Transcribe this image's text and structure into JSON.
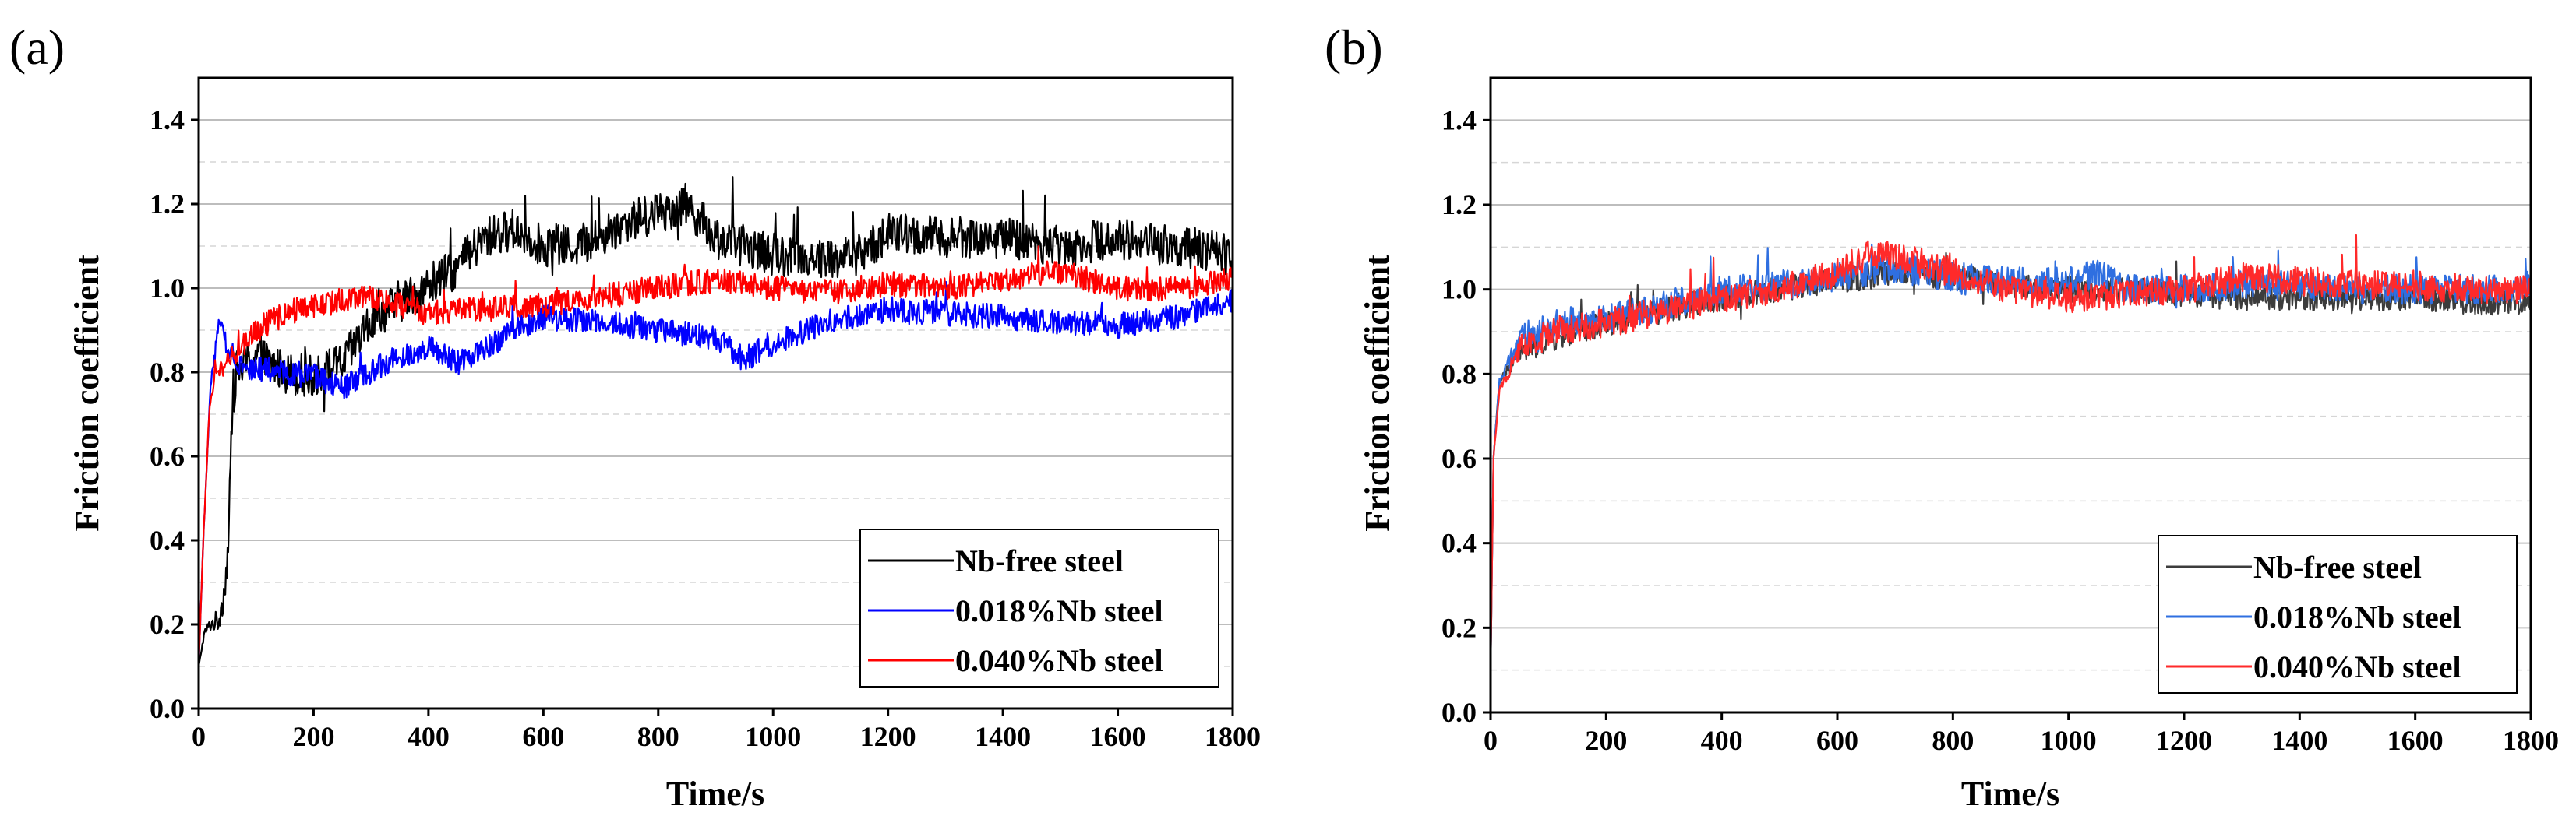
{
  "chart_data": [
    {
      "type": "line",
      "panel_label": "(a)",
      "xlabel": "Time/s",
      "ylabel": "Friction coefficient",
      "xlim": [
        0,
        1800
      ],
      "ylim": [
        0,
        1.5
      ],
      "x_ticks": [
        "0",
        "200",
        "400",
        "600",
        "800",
        "1000",
        "1200",
        "1400",
        "1600",
        "1800"
      ],
      "y_ticks": [
        "0.0",
        "0.2",
        "0.4",
        "0.6",
        "0.8",
        "1.0",
        "1.2",
        "1.4"
      ],
      "grid": true,
      "legend_position": "bottom-right",
      "series": [
        {
          "name": "Nb-free steel",
          "color": "#000000",
          "noise": 0.05,
          "points": [
            [
              0,
              0.1
            ],
            [
              10,
              0.18
            ],
            [
              20,
              0.2
            ],
            [
              35,
              0.21
            ],
            [
              45,
              0.28
            ],
            [
              52,
              0.4
            ],
            [
              58,
              0.7
            ],
            [
              65,
              0.8
            ],
            [
              100,
              0.84
            ],
            [
              150,
              0.8
            ],
            [
              200,
              0.79
            ],
            [
              250,
              0.82
            ],
            [
              300,
              0.92
            ],
            [
              350,
              0.97
            ],
            [
              400,
              1.0
            ],
            [
              450,
              1.05
            ],
            [
              500,
              1.12
            ],
            [
              550,
              1.14
            ],
            [
              600,
              1.1
            ],
            [
              650,
              1.1
            ],
            [
              700,
              1.12
            ],
            [
              750,
              1.16
            ],
            [
              800,
              1.18
            ],
            [
              850,
              1.2
            ],
            [
              900,
              1.12
            ],
            [
              1000,
              1.08
            ],
            [
              1100,
              1.07
            ],
            [
              1150,
              1.08
            ],
            [
              1200,
              1.13
            ],
            [
              1300,
              1.12
            ],
            [
              1400,
              1.12
            ],
            [
              1500,
              1.1
            ],
            [
              1600,
              1.12
            ],
            [
              1700,
              1.1
            ],
            [
              1800,
              1.08
            ]
          ]
        },
        {
          "name": "0.018%Nb steel",
          "color": "#0000ff",
          "noise": 0.03,
          "points": [
            [
              0,
              0.1
            ],
            [
              8,
              0.4
            ],
            [
              20,
              0.75
            ],
            [
              35,
              0.92
            ],
            [
              50,
              0.86
            ],
            [
              80,
              0.81
            ],
            [
              150,
              0.8
            ],
            [
              200,
              0.79
            ],
            [
              250,
              0.76
            ],
            [
              300,
              0.8
            ],
            [
              350,
              0.84
            ],
            [
              400,
              0.86
            ],
            [
              450,
              0.82
            ],
            [
              500,
              0.86
            ],
            [
              550,
              0.9
            ],
            [
              600,
              0.93
            ],
            [
              700,
              0.92
            ],
            [
              800,
              0.9
            ],
            [
              900,
              0.88
            ],
            [
              950,
              0.83
            ],
            [
              1000,
              0.87
            ],
            [
              1100,
              0.92
            ],
            [
              1200,
              0.95
            ],
            [
              1300,
              0.94
            ],
            [
              1400,
              0.93
            ],
            [
              1500,
              0.92
            ],
            [
              1600,
              0.91
            ],
            [
              1700,
              0.93
            ],
            [
              1800,
              0.97
            ]
          ]
        },
        {
          "name": "0.040%Nb steel",
          "color": "#ff0000",
          "noise": 0.03,
          "points": [
            [
              0,
              0.1
            ],
            [
              8,
              0.4
            ],
            [
              18,
              0.7
            ],
            [
              30,
              0.8
            ],
            [
              50,
              0.82
            ],
            [
              100,
              0.9
            ],
            [
              150,
              0.94
            ],
            [
              200,
              0.96
            ],
            [
              250,
              0.97
            ],
            [
              300,
              0.98
            ],
            [
              400,
              0.94
            ],
            [
              500,
              0.95
            ],
            [
              600,
              0.96
            ],
            [
              700,
              0.98
            ],
            [
              800,
              1.0
            ],
            [
              900,
              1.02
            ],
            [
              1000,
              1.0
            ],
            [
              1100,
              0.99
            ],
            [
              1200,
              1.01
            ],
            [
              1300,
              1.0
            ],
            [
              1400,
              1.02
            ],
            [
              1500,
              1.04
            ],
            [
              1600,
              1.0
            ],
            [
              1700,
              1.0
            ],
            [
              1800,
              1.02
            ]
          ]
        }
      ]
    },
    {
      "type": "line",
      "panel_label": "(b)",
      "xlabel": "Time/s",
      "ylabel": "Friction coefficient",
      "xlim": [
        0,
        1800
      ],
      "ylim": [
        0,
        1.5
      ],
      "x_ticks": [
        "0",
        "200",
        "400",
        "600",
        "800",
        "1000",
        "1200",
        "1400",
        "1600",
        "1800"
      ],
      "y_ticks": [
        "0.0",
        "0.2",
        "0.4",
        "0.6",
        "0.8",
        "1.0",
        "1.2",
        "1.4"
      ],
      "grid": true,
      "legend_position": "bottom-right",
      "series": [
        {
          "name": "Nb-free steel",
          "color": "#3c3c3c",
          "noise": 0.03,
          "points": [
            [
              0,
              0.1
            ],
            [
              5,
              0.6
            ],
            [
              15,
              0.78
            ],
            [
              50,
              0.85
            ],
            [
              100,
              0.88
            ],
            [
              200,
              0.92
            ],
            [
              300,
              0.95
            ],
            [
              400,
              0.98
            ],
            [
              500,
              1.0
            ],
            [
              600,
              1.02
            ],
            [
              700,
              1.04
            ],
            [
              800,
              1.03
            ],
            [
              900,
              1.01
            ],
            [
              1000,
              1.0
            ],
            [
              1100,
              1.0
            ],
            [
              1200,
              0.99
            ],
            [
              1300,
              0.98
            ],
            [
              1400,
              0.98
            ],
            [
              1500,
              0.98
            ],
            [
              1600,
              0.98
            ],
            [
              1700,
              0.97
            ],
            [
              1800,
              0.97
            ]
          ]
        },
        {
          "name": "0.018%Nb steel",
          "color": "#2f6fe0",
          "noise": 0.035,
          "points": [
            [
              0,
              0.1
            ],
            [
              5,
              0.6
            ],
            [
              15,
              0.78
            ],
            [
              50,
              0.88
            ],
            [
              100,
              0.92
            ],
            [
              200,
              0.93
            ],
            [
              300,
              0.96
            ],
            [
              400,
              1.0
            ],
            [
              500,
              1.01
            ],
            [
              600,
              1.03
            ],
            [
              700,
              1.05
            ],
            [
              800,
              1.03
            ],
            [
              900,
              1.02
            ],
            [
              1000,
              1.02
            ],
            [
              1050,
              1.04
            ],
            [
              1100,
              1.0
            ],
            [
              1200,
              1.0
            ],
            [
              1300,
              1.01
            ],
            [
              1400,
              1.01
            ],
            [
              1500,
              1.0
            ],
            [
              1600,
              1.0
            ],
            [
              1700,
              1.0
            ],
            [
              1800,
              1.0
            ]
          ]
        },
        {
          "name": "0.040%Nb steel",
          "color": "#ff2a2a",
          "noise": 0.035,
          "points": [
            [
              0,
              0.1
            ],
            [
              5,
              0.6
            ],
            [
              15,
              0.76
            ],
            [
              50,
              0.86
            ],
            [
              100,
              0.9
            ],
            [
              200,
              0.92
            ],
            [
              300,
              0.95
            ],
            [
              400,
              0.98
            ],
            [
              500,
              1.0
            ],
            [
              600,
              1.04
            ],
            [
              650,
              1.08
            ],
            [
              700,
              1.08
            ],
            [
              800,
              1.04
            ],
            [
              900,
              1.0
            ],
            [
              1000,
              0.98
            ],
            [
              1100,
              0.99
            ],
            [
              1200,
              1.0
            ],
            [
              1300,
              1.03
            ],
            [
              1400,
              1.02
            ],
            [
              1500,
              1.01
            ],
            [
              1600,
              1.01
            ],
            [
              1700,
              1.0
            ],
            [
              1800,
              1.0
            ]
          ]
        }
      ]
    }
  ]
}
